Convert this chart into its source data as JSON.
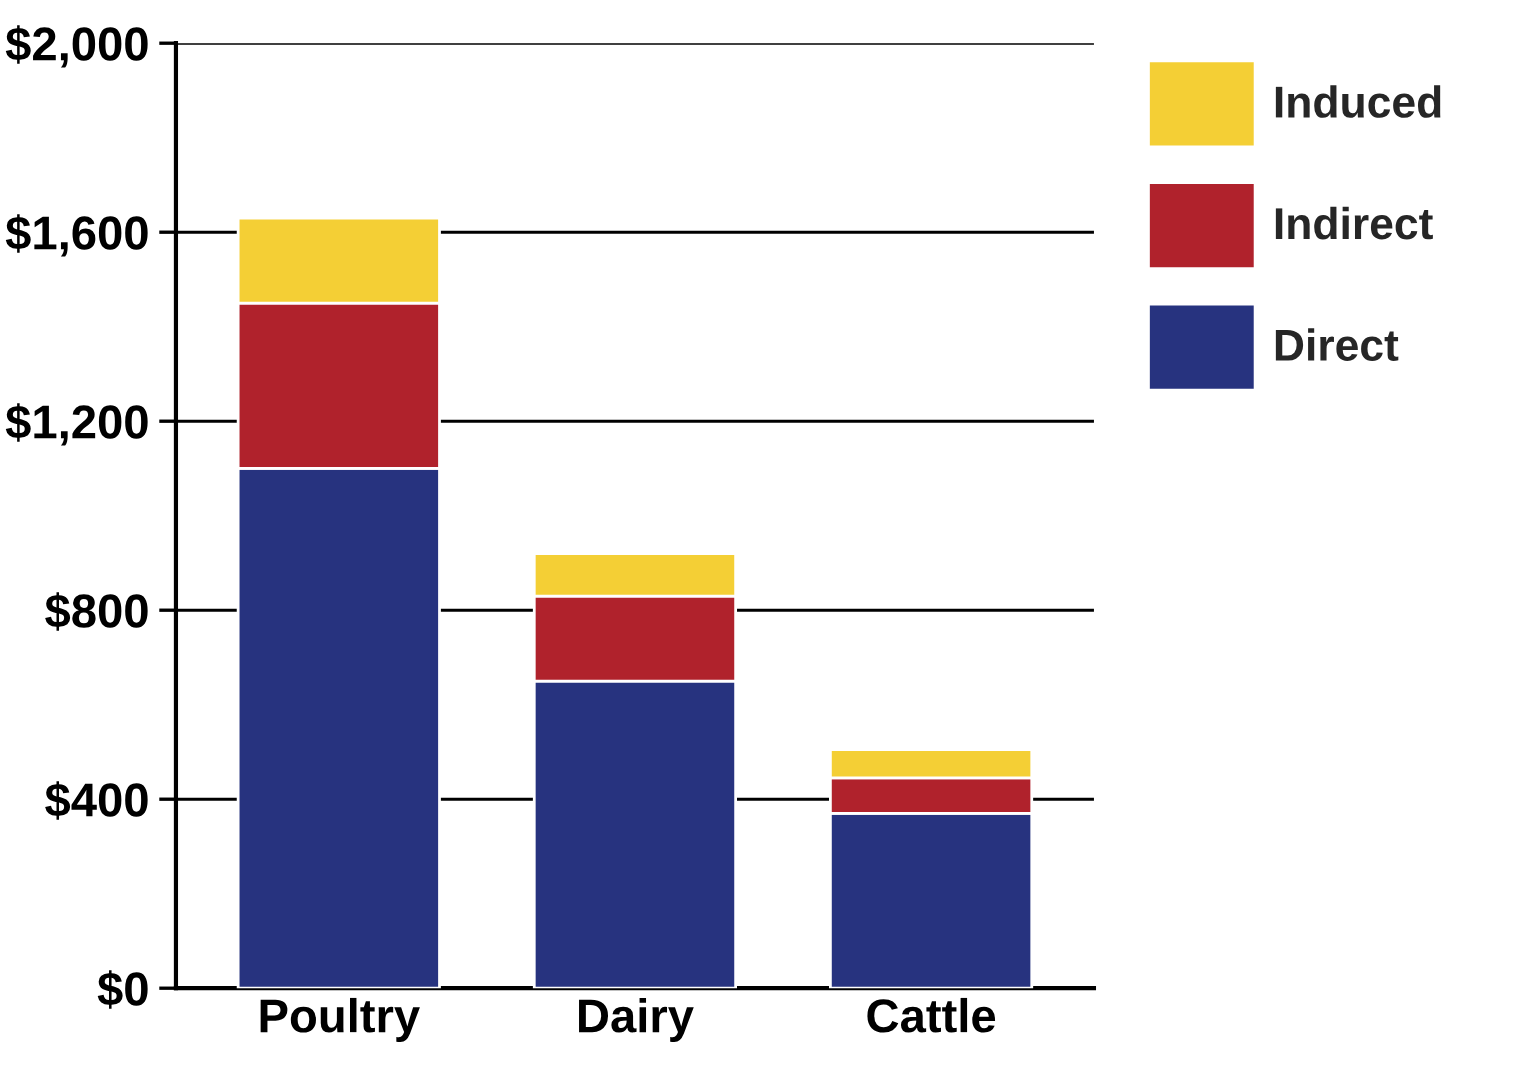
{
  "chart_data": {
    "type": "bar",
    "stacked": true,
    "categories": [
      "Poultry",
      "Dairy",
      "Cattle"
    ],
    "series": [
      {
        "name": "Direct",
        "color": "#27337f",
        "values": [
          1100,
          650,
          370
        ]
      },
      {
        "name": "Indirect",
        "color": "#b0222c",
        "values": [
          350,
          180,
          75
        ]
      },
      {
        "name": "Induced",
        "color": "#f4cf35",
        "values": [
          180,
          90,
          60
        ]
      }
    ],
    "ylim": [
      0,
      2000
    ],
    "yticks": [
      {
        "value": 0,
        "label": "$0"
      },
      {
        "value": 400,
        "label": "$400"
      },
      {
        "value": 800,
        "label": "$800"
      },
      {
        "value": 1200,
        "label": "$1,200"
      },
      {
        "value": 1600,
        "label": "$1,600"
      },
      {
        "value": 2000,
        "label": "$2,000"
      }
    ],
    "grid": "y",
    "legend": "top right"
  }
}
